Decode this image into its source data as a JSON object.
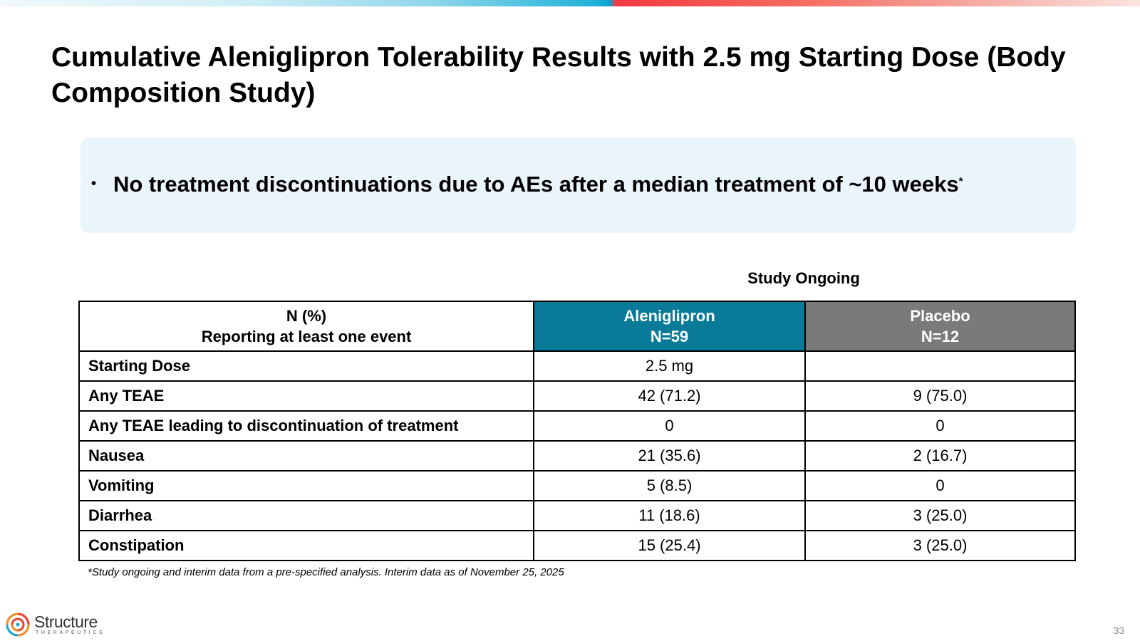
{
  "slide": {
    "title": "Cumulative Aleniglipron Tolerability Results with 2.5 mg Starting Dose (Body Composition Study)",
    "callout": {
      "bullet": "•",
      "text": "No treatment discontinuations due to AEs after a median treatment of ~10 weeks",
      "superscript": "*"
    },
    "study_ongoing_label": "Study Ongoing",
    "table": {
      "header": {
        "label_line1": "N  (%)",
        "label_line2": "Reporting at least one event",
        "drug_line1": "Aleniglipron",
        "drug_line2": "N=59",
        "placebo_line1": "Placebo",
        "placebo_line2": "N=12"
      },
      "rows": [
        {
          "label": "Starting Dose",
          "aleniglipron": "2.5 mg",
          "placebo": ""
        },
        {
          "label": "Any TEAE",
          "aleniglipron": "42 (71.2)",
          "placebo": "9 (75.0)"
        },
        {
          "label": "Any TEAE leading to discontinuation of treatment",
          "aleniglipron": "0",
          "placebo": "0"
        },
        {
          "label": "Nausea",
          "aleniglipron": "21 (35.6)",
          "placebo": "2 (16.7)"
        },
        {
          "label": "Vomiting",
          "aleniglipron": "5 (8.5)",
          "placebo": "0"
        },
        {
          "label": "Diarrhea",
          "aleniglipron": "11 (18.6)",
          "placebo": "3 (25.0)"
        },
        {
          "label": "Constipation",
          "aleniglipron": "15 (25.4)",
          "placebo": "3 (25.0)"
        }
      ]
    },
    "footnote": "*Study  ongoing  and  interim  data  from  a  pre-specified  analysis.  Interim  data  as  of  November  25,  2025",
    "logo": {
      "name": "Structure",
      "tagline": "THERAPEUTICS",
      "icon": "structure-logo-icon"
    },
    "page_number": "33",
    "colors": {
      "aleniglipron_header": "#0a7a99",
      "placebo_header": "#7a7a7a",
      "callout_background": "#e9f5fa"
    }
  }
}
